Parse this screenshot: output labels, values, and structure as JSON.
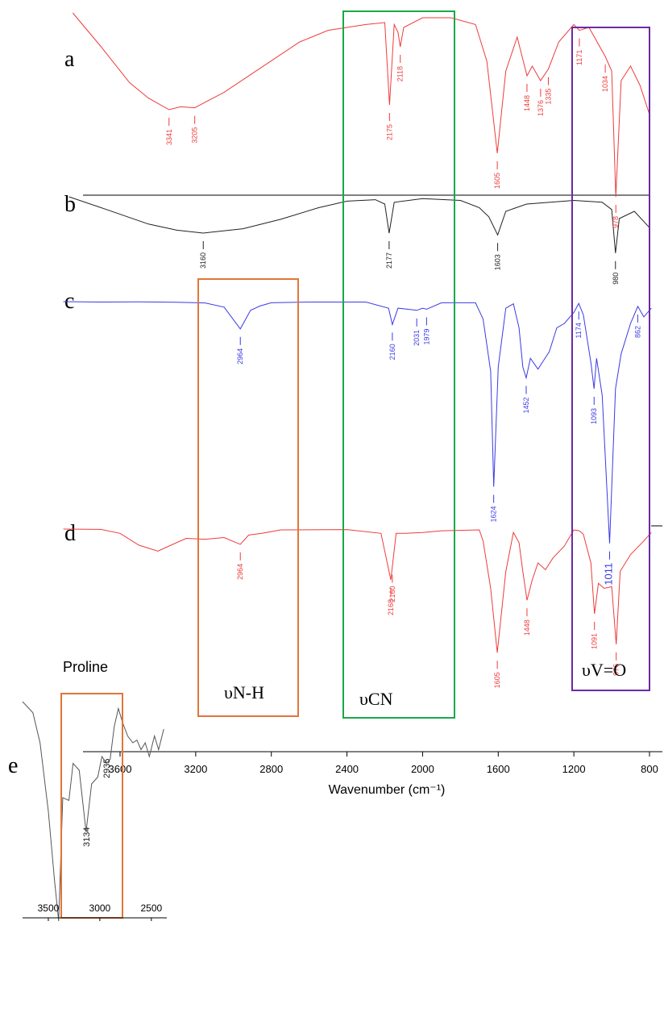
{
  "chart_data": {
    "type": "line",
    "xlabel": "Wavenumber (cm⁻¹)",
    "xlim": [
      3900,
      760
    ],
    "xticks": [
      3600,
      3200,
      2800,
      2400,
      2000,
      1600,
      1200,
      800
    ],
    "panel_labels": [
      "a",
      "b",
      "c",
      "d",
      "e"
    ],
    "colors": {
      "a": "#ef3b3b",
      "b": "#222222",
      "c": "#3a3ae6",
      "d": "#ef3b3b",
      "e": "#555555",
      "box_nh": "#e0763a",
      "box_cn": "#1aa84a",
      "box_vo": "#6a2aa8"
    },
    "series": [
      {
        "name": "a",
        "values": [
          [
            3850,
            0.0
          ],
          [
            3700,
            0.35
          ],
          [
            3550,
            0.72
          ],
          [
            3450,
            0.88
          ],
          [
            3341,
            1.0
          ],
          [
            3280,
            0.97
          ],
          [
            3205,
            0.98
          ],
          [
            3050,
            0.82
          ],
          [
            2850,
            0.56
          ],
          [
            2650,
            0.3
          ],
          [
            2500,
            0.18
          ],
          [
            2300,
            0.12
          ],
          [
            2200,
            0.1
          ],
          [
            2175,
            0.95
          ],
          [
            2150,
            0.12
          ],
          [
            2130,
            0.2
          ],
          [
            2118,
            0.35
          ],
          [
            2100,
            0.15
          ],
          [
            2000,
            0.05
          ],
          [
            1850,
            0.05
          ],
          [
            1720,
            0.12
          ],
          [
            1660,
            0.5
          ],
          [
            1605,
            1.45
          ],
          [
            1560,
            0.6
          ],
          [
            1500,
            0.25
          ],
          [
            1448,
            0.65
          ],
          [
            1420,
            0.55
          ],
          [
            1376,
            0.7
          ],
          [
            1335,
            0.58
          ],
          [
            1280,
            0.3
          ],
          [
            1200,
            0.12
          ],
          [
            1171,
            0.18
          ],
          [
            1120,
            0.15
          ],
          [
            1034,
            0.45
          ],
          [
            1000,
            0.6
          ],
          [
            978,
            1.9
          ],
          [
            950,
            0.7
          ],
          [
            900,
            0.55
          ],
          [
            850,
            0.75
          ],
          [
            800,
            1.05
          ]
        ],
        "labels": [
          "3341",
          "3205",
          "2175",
          "2118",
          "1605",
          "1448",
          "1376",
          "1335",
          "1171",
          "1034",
          "978"
        ]
      },
      {
        "name": "b",
        "values": [
          [
            3870,
            0.0
          ],
          [
            3700,
            0.3
          ],
          [
            3450,
            0.75
          ],
          [
            3300,
            0.92
          ],
          [
            3160,
            1.0
          ],
          [
            2950,
            0.88
          ],
          [
            2750,
            0.62
          ],
          [
            2550,
            0.3
          ],
          [
            2400,
            0.12
          ],
          [
            2250,
            0.08
          ],
          [
            2200,
            0.2
          ],
          [
            2177,
            1.0
          ],
          [
            2150,
            0.15
          ],
          [
            2000,
            0.05
          ],
          [
            1800,
            0.1
          ],
          [
            1700,
            0.3
          ],
          [
            1650,
            0.55
          ],
          [
            1603,
            1.05
          ],
          [
            1560,
            0.4
          ],
          [
            1450,
            0.2
          ],
          [
            1200,
            0.1
          ],
          [
            1050,
            0.15
          ],
          [
            1000,
            0.35
          ],
          [
            980,
            1.55
          ],
          [
            960,
            0.6
          ],
          [
            880,
            0.4
          ],
          [
            800,
            0.85
          ]
        ],
        "labels": [
          "3160",
          "2177",
          "1603",
          "980"
        ]
      },
      {
        "name": "c",
        "values": [
          [
            3900,
            0.0
          ],
          [
            3700,
            0.02
          ],
          [
            3500,
            0.01
          ],
          [
            3300,
            0.03
          ],
          [
            3150,
            0.06
          ],
          [
            3050,
            0.25
          ],
          [
            2964,
            1.25
          ],
          [
            2910,
            0.4
          ],
          [
            2860,
            0.2
          ],
          [
            2800,
            0.05
          ],
          [
            2600,
            0.02
          ],
          [
            2300,
            0.02
          ],
          [
            2180,
            0.3
          ],
          [
            2160,
            1.05
          ],
          [
            2130,
            0.3
          ],
          [
            2080,
            0.35
          ],
          [
            2031,
            0.4
          ],
          [
            2000,
            0.3
          ],
          [
            1979,
            0.35
          ],
          [
            1900,
            0.05
          ],
          [
            1720,
            0.05
          ],
          [
            1680,
            0.8
          ],
          [
            1640,
            3.2
          ],
          [
            1624,
            8.5
          ],
          [
            1600,
            3.0
          ],
          [
            1560,
            0.3
          ],
          [
            1520,
            0.1
          ],
          [
            1490,
            1.2
          ],
          [
            1470,
            3.0
          ],
          [
            1452,
            3.5
          ],
          [
            1430,
            2.6
          ],
          [
            1390,
            3.1
          ],
          [
            1360,
            2.7
          ],
          [
            1330,
            2.3
          ],
          [
            1290,
            1.2
          ],
          [
            1250,
            1.0
          ],
          [
            1200,
            0.5
          ],
          [
            1174,
            0.08
          ],
          [
            1150,
            0.6
          ],
          [
            1110,
            2.8
          ],
          [
            1093,
            4.0
          ],
          [
            1080,
            2.6
          ],
          [
            1050,
            4.3
          ],
          [
            1011,
            11.1
          ],
          [
            980,
            4.0
          ],
          [
            950,
            2.4
          ],
          [
            900,
            1.0
          ],
          [
            862,
            0.22
          ],
          [
            830,
            0.7
          ],
          [
            790,
            0.3
          ]
        ],
        "labels": [
          "2964",
          "2160",
          "2031",
          "1979",
          "1624",
          "1452",
          "1174",
          "1093",
          "1011",
          "862"
        ]
      },
      {
        "name": "d",
        "values": [
          [
            3900,
            0.0
          ],
          [
            3700,
            0.02
          ],
          [
            3600,
            0.25
          ],
          [
            3500,
            0.95
          ],
          [
            3400,
            1.3
          ],
          [
            3341,
            1.0
          ],
          [
            3250,
            0.55
          ],
          [
            3150,
            0.6
          ],
          [
            3050,
            0.5
          ],
          [
            2964,
            0.9
          ],
          [
            2920,
            0.35
          ],
          [
            2850,
            0.25
          ],
          [
            2750,
            0.05
          ],
          [
            2400,
            0.03
          ],
          [
            2220,
            0.25
          ],
          [
            2168,
            3.0
          ],
          [
            2140,
            0.25
          ],
          [
            2090,
            0.25
          ],
          [
            2000,
            0.2
          ],
          [
            1900,
            0.1
          ],
          [
            1700,
            0.05
          ],
          [
            1680,
            0.7
          ],
          [
            1640,
            3.5
          ],
          [
            1605,
            7.3
          ],
          [
            1560,
            2.5
          ],
          [
            1520,
            0.2
          ],
          [
            1490,
            0.8
          ],
          [
            1470,
            2.5
          ],
          [
            1448,
            4.2
          ],
          [
            1420,
            3.0
          ],
          [
            1390,
            2.0
          ],
          [
            1350,
            2.4
          ],
          [
            1310,
            1.7
          ],
          [
            1250,
            1.0
          ],
          [
            1200,
            0.05
          ],
          [
            1171,
            0.1
          ],
          [
            1150,
            0.3
          ],
          [
            1110,
            2.0
          ],
          [
            1091,
            5.0
          ],
          [
            1070,
            3.2
          ],
          [
            1040,
            3.5
          ],
          [
            1000,
            3.4
          ],
          [
            976,
            6.8
          ],
          [
            955,
            2.5
          ],
          [
            900,
            1.5
          ],
          [
            830,
            0.7
          ],
          [
            790,
            0.2
          ]
        ],
        "labels": [
          "2964",
          "2168",
          "2160",
          "1605",
          "1448",
          "1091",
          "976"
        ]
      }
    ],
    "inset": {
      "title": "Proline",
      "xlim": [
        3750,
        2350
      ],
      "xticks": [
        3500,
        3000,
        2500
      ],
      "values": [
        [
          3750,
          0.0
        ],
        [
          3650,
          0.08
        ],
        [
          3580,
          0.3
        ],
        [
          3500,
          0.8
        ],
        [
          3440,
          1.3
        ],
        [
          3400,
          1.6
        ],
        [
          3360,
          0.7
        ],
        [
          3300,
          0.72
        ],
        [
          3260,
          0.45
        ],
        [
          3200,
          0.5
        ],
        [
          3134,
          0.95
        ],
        [
          3080,
          0.6
        ],
        [
          3020,
          0.55
        ],
        [
          2980,
          0.4
        ],
        [
          2935,
          0.45
        ],
        [
          2900,
          0.42
        ],
        [
          2860,
          0.18
        ],
        [
          2820,
          0.05
        ],
        [
          2780,
          0.15
        ],
        [
          2730,
          0.25
        ],
        [
          2680,
          0.3
        ],
        [
          2640,
          0.28
        ],
        [
          2600,
          0.35
        ],
        [
          2560,
          0.3
        ],
        [
          2520,
          0.4
        ],
        [
          2470,
          0.25
        ],
        [
          2430,
          0.35
        ],
        [
          2380,
          0.2
        ]
      ],
      "labels": [
        "3134",
        "2935"
      ]
    },
    "boxes": {
      "nh": "υN-H",
      "cn": "υCN",
      "vo": "υV=O"
    }
  }
}
